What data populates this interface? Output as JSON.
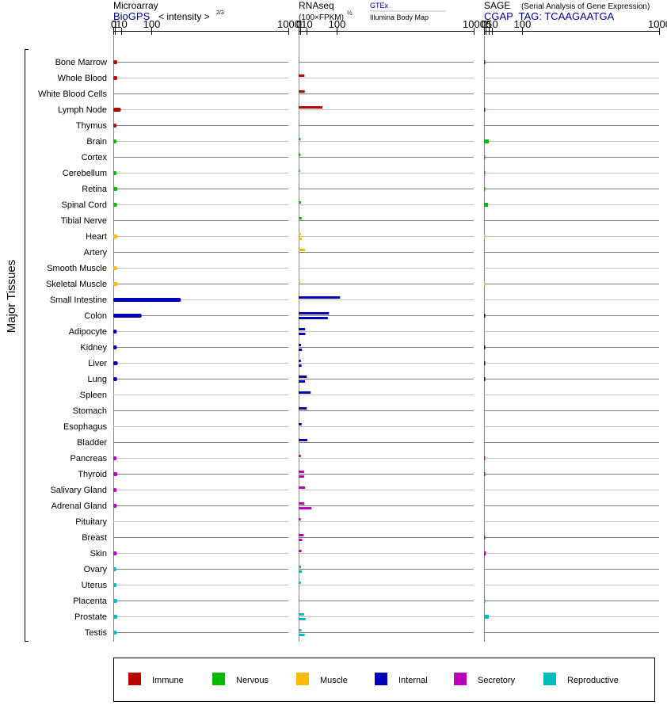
{
  "colors": {
    "Immune": "#bb0000",
    "Nervous": "#00bb00",
    "Muscle": "#ffbb00",
    "Internal": "#0000bb",
    "Secretory": "#bb00bb",
    "Reproductive": "#00bbbb",
    "header_blue": "#000088"
  },
  "chart_data": {
    "type": "bar",
    "y_axis_label": "Major Tissues",
    "categories": [
      "Bone Marrow",
      "Whole Blood",
      "White Blood Cells",
      "Lymph Node",
      "Thymus",
      "Brain",
      "Cortex",
      "Cerebellum",
      "Retina",
      "Spinal Cord",
      "Tibial Nerve",
      "Heart",
      "Artery",
      "Smooth Muscle",
      "Skeletal Muscle",
      "Small Intestine",
      "Colon",
      "Adipocyte",
      "Kidney",
      "Liver",
      "Lung",
      "Spleen",
      "Stomach",
      "Esophagus",
      "Bladder",
      "Pancreas",
      "Thyroid",
      "Salivary Gland",
      "Adrenal Gland",
      "Pituitary",
      "Breast",
      "Skin",
      "Ovary",
      "Uterus",
      "Placenta",
      "Prostate",
      "Testis"
    ],
    "tissue_groups": [
      "Immune",
      "Immune",
      "Immune",
      "Immune",
      "Immune",
      "Nervous",
      "Nervous",
      "Nervous",
      "Nervous",
      "Nervous",
      "Nervous",
      "Muscle",
      "Muscle",
      "Muscle",
      "Muscle",
      "Internal",
      "Internal",
      "Internal",
      "Internal",
      "Internal",
      "Internal",
      "Internal",
      "Internal",
      "Internal",
      "Internal",
      "Secretory",
      "Secretory",
      "Secretory",
      "Secretory",
      "Secretory",
      "Secretory",
      "Secretory",
      "Reproductive",
      "Reproductive",
      "Reproductive",
      "Reproductive",
      "Reproductive"
    ],
    "legend": [
      "Immune",
      "Nervous",
      "Muscle",
      "Internal",
      "Secretory",
      "Reproductive"
    ],
    "panels": [
      {
        "title": "Microarray",
        "source": "BioGPS",
        "scale_label": "< intensity >",
        "scale_exponent": "2/3",
        "ticks": [
          "0",
          "1",
          "10",
          "100",
          "1000"
        ],
        "xlim": [
          0,
          1000
        ],
        "series": [
          {
            "values": [
              3.4,
              3.4,
              null,
              9,
              2.6,
              2.6,
              null,
              2.6,
              3.6,
              3.2,
              null,
              3.8,
              null,
              3.4,
              3.8,
              240,
              65,
              2.8,
              2.9,
              4.0,
              3.2,
              null,
              null,
              null,
              null,
              2.6,
              3.6,
              2.7,
              2.9,
              null,
              null,
              2.9,
              2.4,
              2.6,
              3.4,
              3.6,
              2.9
            ]
          }
        ]
      },
      {
        "title": "RNAseq",
        "scale_label": "(100×FPKM)",
        "scale_exponent": "½",
        "legend_line1": "GTEx",
        "legend_line2": "Illumina Body Map",
        "ticks": [
          "0",
          "1",
          "10",
          "100",
          "1000"
        ],
        "xlim": [
          0,
          1000
        ],
        "series": [
          {
            "name": "GTEx",
            "values": [
              null,
              6,
              6.5,
              50,
              null,
              1.1,
              1.1,
              0.6,
              null,
              1.5,
              2.2,
              1.5,
              7,
              null,
              0.9,
              115,
              72,
              7,
              1.6,
              1.4,
              10,
              18,
              10,
              2.2,
              11,
              1.4,
              5.5,
              7,
              6,
              1.3,
              5,
              2.1,
              1.6,
              1.5,
              null,
              5.5,
              2.0
            ]
          },
          {
            "name": "Illumina Body Map",
            "values": [
              null,
              null,
              null,
              null,
              null,
              null,
              null,
              null,
              null,
              null,
              null,
              2.4,
              null,
              null,
              null,
              null,
              68,
              7.5,
              2.6,
              2.1,
              7,
              null,
              null,
              null,
              null,
              null,
              5.5,
              null,
              20,
              null,
              2.8,
              null,
              2.6,
              null,
              null,
              8,
              6.5
            ]
          }
        ]
      },
      {
        "title": "SAGE",
        "subtitle": "(Serial Analysis of Gene Expression)",
        "tag": "CGAP  TAG: TCAAGAATGA",
        "ticks": [
          "0",
          "1",
          "5",
          "10",
          "100",
          "1000"
        ],
        "xlim": [
          0,
          1000
        ],
        "series": [
          {
            "values": [
              0.02,
              null,
              null,
              0.02,
              null,
              4.5,
              0.01,
              0.01,
              0.01,
              3.5,
              null,
              0.01,
              null,
              null,
              0.01,
              null,
              0.02,
              null,
              0.02,
              0.02,
              0.02,
              null,
              null,
              null,
              null,
              0.02,
              0.02,
              null,
              null,
              null,
              0.02,
              1.1,
              null,
              null,
              0.01,
              4.5,
              null
            ]
          }
        ]
      }
    ]
  }
}
